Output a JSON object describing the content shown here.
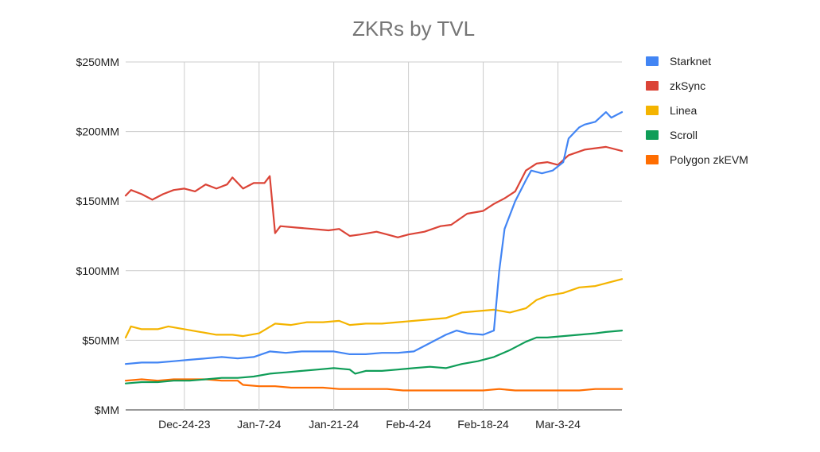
{
  "chart_data": {
    "type": "line",
    "title": "ZKRs by TVL",
    "xlabel": "",
    "ylabel": "",
    "ylim": [
      0,
      250
    ],
    "y_ticks": [
      {
        "value": 0,
        "label": "$MM"
      },
      {
        "value": 50,
        "label": "$50MM"
      },
      {
        "value": 100,
        "label": "$100MM"
      },
      {
        "value": 150,
        "label": "$150MM"
      },
      {
        "value": 200,
        "label": "$200MM"
      },
      {
        "value": 250,
        "label": "$250MM"
      }
    ],
    "x_ticks": [
      {
        "date": "2023-12-24",
        "label": "Dec-24-23"
      },
      {
        "date": "2024-01-07",
        "label": "Jan-7-24"
      },
      {
        "date": "2024-01-21",
        "label": "Jan-21-24"
      },
      {
        "date": "2024-02-04",
        "label": "Feb-4-24"
      },
      {
        "date": "2024-02-18",
        "label": "Feb-18-24"
      },
      {
        "date": "2024-03-03",
        "label": "Mar-3-24"
      }
    ],
    "x_start": "2023-12-13",
    "x_end": "2024-03-15",
    "grid": true,
    "legend_position": "right",
    "series": [
      {
        "name": "Starknet",
        "color": "#4285f4",
        "points": [
          [
            "2023-12-13",
            33
          ],
          [
            "2023-12-16",
            34
          ],
          [
            "2023-12-19",
            34
          ],
          [
            "2023-12-22",
            35
          ],
          [
            "2023-12-25",
            36
          ],
          [
            "2023-12-28",
            37
          ],
          [
            "2023-12-31",
            38
          ],
          [
            "2024-01-03",
            37
          ],
          [
            "2024-01-06",
            38
          ],
          [
            "2024-01-09",
            42
          ],
          [
            "2024-01-12",
            41
          ],
          [
            "2024-01-15",
            42
          ],
          [
            "2024-01-18",
            42
          ],
          [
            "2024-01-21",
            42
          ],
          [
            "2024-01-24",
            40
          ],
          [
            "2024-01-27",
            40
          ],
          [
            "2024-01-30",
            41
          ],
          [
            "2024-02-02",
            41
          ],
          [
            "2024-02-05",
            42
          ],
          [
            "2024-02-08",
            48
          ],
          [
            "2024-02-11",
            54
          ],
          [
            "2024-02-13",
            57
          ],
          [
            "2024-02-15",
            55
          ],
          [
            "2024-02-18",
            54
          ],
          [
            "2024-02-20",
            57
          ],
          [
            "2024-02-21",
            100
          ],
          [
            "2024-02-22",
            130
          ],
          [
            "2024-02-24",
            150
          ],
          [
            "2024-02-26",
            165
          ],
          [
            "2024-02-27",
            172
          ],
          [
            "2024-02-29",
            170
          ],
          [
            "2024-03-02",
            172
          ],
          [
            "2024-03-04",
            178
          ],
          [
            "2024-03-05",
            195
          ],
          [
            "2024-03-07",
            203
          ],
          [
            "2024-03-08",
            205
          ],
          [
            "2024-03-10",
            207
          ],
          [
            "2024-03-12",
            214
          ],
          [
            "2024-03-13",
            210
          ],
          [
            "2024-03-15",
            214
          ]
        ]
      },
      {
        "name": "zkSync",
        "color": "#db4437",
        "points": [
          [
            "2023-12-13",
            154
          ],
          [
            "2023-12-14",
            158
          ],
          [
            "2023-12-16",
            155
          ],
          [
            "2023-12-18",
            151
          ],
          [
            "2023-12-20",
            155
          ],
          [
            "2023-12-22",
            158
          ],
          [
            "2023-12-24",
            159
          ],
          [
            "2023-12-26",
            157
          ],
          [
            "2023-12-28",
            162
          ],
          [
            "2023-12-30",
            159
          ],
          [
            "2024-01-01",
            162
          ],
          [
            "2024-01-02",
            167
          ],
          [
            "2024-01-04",
            159
          ],
          [
            "2024-01-06",
            163
          ],
          [
            "2024-01-08",
            163
          ],
          [
            "2024-01-09",
            168
          ],
          [
            "2024-01-10",
            127
          ],
          [
            "2024-01-11",
            132
          ],
          [
            "2024-01-14",
            131
          ],
          [
            "2024-01-17",
            130
          ],
          [
            "2024-01-20",
            129
          ],
          [
            "2024-01-22",
            130
          ],
          [
            "2024-01-24",
            125
          ],
          [
            "2024-01-26",
            126
          ],
          [
            "2024-01-29",
            128
          ],
          [
            "2024-01-31",
            126
          ],
          [
            "2024-02-02",
            124
          ],
          [
            "2024-02-04",
            126
          ],
          [
            "2024-02-07",
            128
          ],
          [
            "2024-02-10",
            132
          ],
          [
            "2024-02-12",
            133
          ],
          [
            "2024-02-15",
            141
          ],
          [
            "2024-02-18",
            143
          ],
          [
            "2024-02-20",
            148
          ],
          [
            "2024-02-22",
            152
          ],
          [
            "2024-02-24",
            157
          ],
          [
            "2024-02-26",
            172
          ],
          [
            "2024-02-28",
            177
          ],
          [
            "2024-03-01",
            178
          ],
          [
            "2024-03-03",
            176
          ],
          [
            "2024-03-05",
            183
          ],
          [
            "2024-03-08",
            187
          ],
          [
            "2024-03-10",
            188
          ],
          [
            "2024-03-12",
            189
          ],
          [
            "2024-03-15",
            186
          ]
        ]
      },
      {
        "name": "Linea",
        "color": "#f4b400",
        "points": [
          [
            "2023-12-13",
            52
          ],
          [
            "2023-12-14",
            60
          ],
          [
            "2023-12-16",
            58
          ],
          [
            "2023-12-19",
            58
          ],
          [
            "2023-12-21",
            60
          ],
          [
            "2023-12-24",
            58
          ],
          [
            "2023-12-27",
            56
          ],
          [
            "2023-12-30",
            54
          ],
          [
            "2024-01-02",
            54
          ],
          [
            "2024-01-04",
            53
          ],
          [
            "2024-01-07",
            55
          ],
          [
            "2024-01-10",
            62
          ],
          [
            "2024-01-13",
            61
          ],
          [
            "2024-01-16",
            63
          ],
          [
            "2024-01-19",
            63
          ],
          [
            "2024-01-22",
            64
          ],
          [
            "2024-01-24",
            61
          ],
          [
            "2024-01-27",
            62
          ],
          [
            "2024-01-30",
            62
          ],
          [
            "2024-02-02",
            63
          ],
          [
            "2024-02-05",
            64
          ],
          [
            "2024-02-08",
            65
          ],
          [
            "2024-02-11",
            66
          ],
          [
            "2024-02-14",
            70
          ],
          [
            "2024-02-17",
            71
          ],
          [
            "2024-02-20",
            72
          ],
          [
            "2024-02-23",
            70
          ],
          [
            "2024-02-26",
            73
          ],
          [
            "2024-02-28",
            79
          ],
          [
            "2024-03-01",
            82
          ],
          [
            "2024-03-04",
            84
          ],
          [
            "2024-03-07",
            88
          ],
          [
            "2024-03-10",
            89
          ],
          [
            "2024-03-12",
            91
          ],
          [
            "2024-03-15",
            94
          ]
        ]
      },
      {
        "name": "Scroll",
        "color": "#0f9d58",
        "points": [
          [
            "2023-12-13",
            19
          ],
          [
            "2023-12-16",
            20
          ],
          [
            "2023-12-19",
            20
          ],
          [
            "2023-12-22",
            21
          ],
          [
            "2023-12-25",
            21
          ],
          [
            "2023-12-28",
            22
          ],
          [
            "2023-12-31",
            23
          ],
          [
            "2024-01-03",
            23
          ],
          [
            "2024-01-06",
            24
          ],
          [
            "2024-01-09",
            26
          ],
          [
            "2024-01-12",
            27
          ],
          [
            "2024-01-15",
            28
          ],
          [
            "2024-01-18",
            29
          ],
          [
            "2024-01-21",
            30
          ],
          [
            "2024-01-24",
            29
          ],
          [
            "2024-01-25",
            26
          ],
          [
            "2024-01-27",
            28
          ],
          [
            "2024-01-30",
            28
          ],
          [
            "2024-02-02",
            29
          ],
          [
            "2024-02-05",
            30
          ],
          [
            "2024-02-08",
            31
          ],
          [
            "2024-02-11",
            30
          ],
          [
            "2024-02-14",
            33
          ],
          [
            "2024-02-17",
            35
          ],
          [
            "2024-02-20",
            38
          ],
          [
            "2024-02-23",
            43
          ],
          [
            "2024-02-26",
            49
          ],
          [
            "2024-02-28",
            52
          ],
          [
            "2024-03-01",
            52
          ],
          [
            "2024-03-04",
            53
          ],
          [
            "2024-03-07",
            54
          ],
          [
            "2024-03-10",
            55
          ],
          [
            "2024-03-12",
            56
          ],
          [
            "2024-03-15",
            57
          ]
        ]
      },
      {
        "name": "Polygon zkEVM",
        "color": "#ff6d01",
        "points": [
          [
            "2023-12-13",
            21
          ],
          [
            "2023-12-16",
            22
          ],
          [
            "2023-12-19",
            21
          ],
          [
            "2023-12-22",
            22
          ],
          [
            "2023-12-25",
            22
          ],
          [
            "2023-12-28",
            22
          ],
          [
            "2023-12-31",
            21
          ],
          [
            "2024-01-03",
            21
          ],
          [
            "2024-01-04",
            18
          ],
          [
            "2024-01-07",
            17
          ],
          [
            "2024-01-10",
            17
          ],
          [
            "2024-01-13",
            16
          ],
          [
            "2024-01-16",
            16
          ],
          [
            "2024-01-19",
            16
          ],
          [
            "2024-01-22",
            15
          ],
          [
            "2024-01-25",
            15
          ],
          [
            "2024-01-28",
            15
          ],
          [
            "2024-01-31",
            15
          ],
          [
            "2024-02-03",
            14
          ],
          [
            "2024-02-06",
            14
          ],
          [
            "2024-02-09",
            14
          ],
          [
            "2024-02-12",
            14
          ],
          [
            "2024-02-15",
            14
          ],
          [
            "2024-02-18",
            14
          ],
          [
            "2024-02-21",
            15
          ],
          [
            "2024-02-24",
            14
          ],
          [
            "2024-02-27",
            14
          ],
          [
            "2024-03-01",
            14
          ],
          [
            "2024-03-04",
            14
          ],
          [
            "2024-03-07",
            14
          ],
          [
            "2024-03-10",
            15
          ],
          [
            "2024-03-13",
            15
          ],
          [
            "2024-03-15",
            15
          ]
        ]
      }
    ]
  }
}
